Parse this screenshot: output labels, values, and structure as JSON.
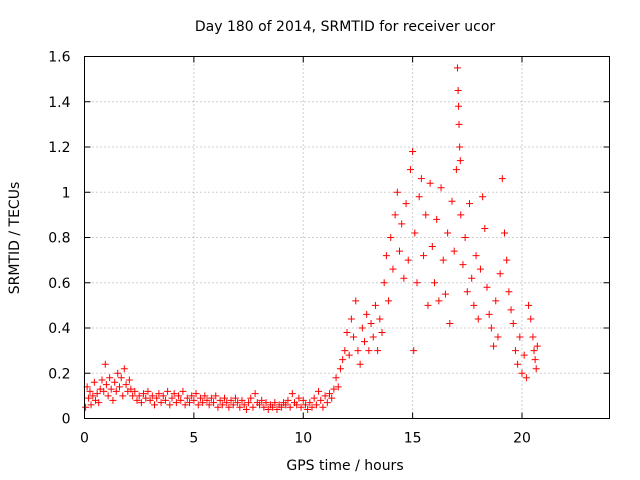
{
  "chart_data": {
    "type": "scatter",
    "title": "Day 180 of 2014, SRMTID for receiver ucor",
    "xlabel": "GPS time / hours",
    "ylabel": "SRMTID / TECUs",
    "xlim": [
      0,
      24
    ],
    "ylim": [
      0,
      1.6
    ],
    "xticks": [
      0,
      5,
      10,
      15,
      20
    ],
    "yticks": [
      0,
      0.2,
      0.4,
      0.6,
      0.8,
      1,
      1.2,
      1.4,
      1.6
    ],
    "xtick_labels": [
      "0",
      "5",
      "10",
      "15",
      "20"
    ],
    "ytick_labels": [
      "0",
      "0.2",
      "0.4",
      "0.6",
      "0.8",
      "1",
      "1.2",
      "1.4",
      "1.6"
    ],
    "grid": true,
    "legend": "none",
    "marker": "plus",
    "color": "#ff0000",
    "series": [
      {
        "name": "SRMTID",
        "points": [
          [
            0.05,
            0.05
          ],
          [
            0.12,
            0.14
          ],
          [
            0.18,
            0.09
          ],
          [
            0.25,
            0.12
          ],
          [
            0.3,
            0.06
          ],
          [
            0.38,
            0.1
          ],
          [
            0.45,
            0.16
          ],
          [
            0.5,
            0.08
          ],
          [
            0.58,
            0.11
          ],
          [
            0.65,
            0.07
          ],
          [
            0.72,
            0.13
          ],
          [
            0.8,
            0.17
          ],
          [
            0.88,
            0.12
          ],
          [
            0.95,
            0.24
          ],
          [
            1.0,
            0.15
          ],
          [
            1.08,
            0.1
          ],
          [
            1.15,
            0.18
          ],
          [
            1.22,
            0.13
          ],
          [
            1.3,
            0.08
          ],
          [
            1.38,
            0.16
          ],
          [
            1.45,
            0.12
          ],
          [
            1.52,
            0.2
          ],
          [
            1.6,
            0.14
          ],
          [
            1.68,
            0.18
          ],
          [
            1.75,
            0.1
          ],
          [
            1.82,
            0.22
          ],
          [
            1.9,
            0.15
          ],
          [
            1.98,
            0.12
          ],
          [
            2.05,
            0.17
          ],
          [
            2.12,
            0.13
          ],
          [
            2.2,
            0.1
          ],
          [
            2.3,
            0.12
          ],
          [
            2.4,
            0.08
          ],
          [
            2.5,
            0.1
          ],
          [
            2.6,
            0.07
          ],
          [
            2.7,
            0.11
          ],
          [
            2.8,
            0.09
          ],
          [
            2.9,
            0.12
          ],
          [
            3.0,
            0.08
          ],
          [
            3.1,
            0.1
          ],
          [
            3.2,
            0.06
          ],
          [
            3.3,
            0.09
          ],
          [
            3.4,
            0.11
          ],
          [
            3.5,
            0.07
          ],
          [
            3.6,
            0.1
          ],
          [
            3.7,
            0.08
          ],
          [
            3.8,
            0.12
          ],
          [
            3.9,
            0.06
          ],
          [
            4.0,
            0.09
          ],
          [
            4.1,
            0.11
          ],
          [
            4.2,
            0.07
          ],
          [
            4.3,
            0.1
          ],
          [
            4.4,
            0.08
          ],
          [
            4.5,
            0.12
          ],
          [
            4.6,
            0.06
          ],
          [
            4.7,
            0.09
          ],
          [
            4.8,
            0.07
          ],
          [
            4.9,
            0.1
          ],
          [
            5.0,
            0.08
          ],
          [
            5.1,
            0.11
          ],
          [
            5.2,
            0.06
          ],
          [
            5.3,
            0.09
          ],
          [
            5.4,
            0.07
          ],
          [
            5.5,
            0.1
          ],
          [
            5.6,
            0.08
          ],
          [
            5.7,
            0.06
          ],
          [
            5.8,
            0.09
          ],
          [
            5.9,
            0.07
          ],
          [
            6.0,
            0.1
          ],
          [
            6.1,
            0.05
          ],
          [
            6.2,
            0.08
          ],
          [
            6.3,
            0.06
          ],
          [
            6.4,
            0.09
          ],
          [
            6.5,
            0.07
          ],
          [
            6.6,
            0.05
          ],
          [
            6.7,
            0.08
          ],
          [
            6.8,
            0.06
          ],
          [
            6.9,
            0.09
          ],
          [
            7.0,
            0.07
          ],
          [
            7.1,
            0.05
          ],
          [
            7.2,
            0.08
          ],
          [
            7.3,
            0.06
          ],
          [
            7.4,
            0.04
          ],
          [
            7.5,
            0.07
          ],
          [
            7.6,
            0.09
          ],
          [
            7.7,
            0.05
          ],
          [
            7.8,
            0.11
          ],
          [
            7.9,
            0.07
          ],
          [
            8.0,
            0.06
          ],
          [
            8.1,
            0.08
          ],
          [
            8.2,
            0.05
          ],
          [
            8.3,
            0.07
          ],
          [
            8.4,
            0.04
          ],
          [
            8.5,
            0.06
          ],
          [
            8.6,
            0.05
          ],
          [
            8.7,
            0.07
          ],
          [
            8.8,
            0.04
          ],
          [
            8.9,
            0.06
          ],
          [
            9.0,
            0.05
          ],
          [
            9.1,
            0.07
          ],
          [
            9.2,
            0.06
          ],
          [
            9.3,
            0.08
          ],
          [
            9.4,
            0.05
          ],
          [
            9.5,
            0.11
          ],
          [
            9.6,
            0.07
          ],
          [
            9.7,
            0.06
          ],
          [
            9.8,
            0.09
          ],
          [
            9.9,
            0.05
          ],
          [
            10.0,
            0.08
          ],
          [
            10.1,
            0.06
          ],
          [
            10.2,
            0.04
          ],
          [
            10.3,
            0.07
          ],
          [
            10.4,
            0.05
          ],
          [
            10.5,
            0.09
          ],
          [
            10.6,
            0.06
          ],
          [
            10.7,
            0.12
          ],
          [
            10.8,
            0.08
          ],
          [
            10.9,
            0.05
          ],
          [
            11.0,
            0.1
          ],
          [
            11.1,
            0.07
          ],
          [
            11.2,
            0.11
          ],
          [
            11.3,
            0.09
          ],
          [
            11.4,
            0.13
          ],
          [
            11.5,
            0.18
          ],
          [
            11.6,
            0.14
          ],
          [
            11.7,
            0.22
          ],
          [
            11.8,
            0.26
          ],
          [
            11.9,
            0.3
          ],
          [
            12.0,
            0.38
          ],
          [
            12.1,
            0.28
          ],
          [
            12.2,
            0.44
          ],
          [
            12.3,
            0.36
          ],
          [
            12.4,
            0.52
          ],
          [
            12.5,
            0.3
          ],
          [
            12.6,
            0.24
          ],
          [
            12.7,
            0.4
          ],
          [
            12.8,
            0.34
          ],
          [
            12.9,
            0.46
          ],
          [
            13.0,
            0.3
          ],
          [
            13.1,
            0.42
          ],
          [
            13.2,
            0.36
          ],
          [
            13.3,
            0.5
          ],
          [
            13.4,
            0.3
          ],
          [
            13.5,
            0.44
          ],
          [
            13.6,
            0.38
          ],
          [
            13.7,
            0.6
          ],
          [
            13.8,
            0.72
          ],
          [
            13.9,
            0.52
          ],
          [
            14.0,
            0.8
          ],
          [
            14.1,
            0.66
          ],
          [
            14.2,
            0.9
          ],
          [
            14.3,
            1.0
          ],
          [
            14.4,
            0.74
          ],
          [
            14.5,
            0.86
          ],
          [
            14.6,
            0.62
          ],
          [
            14.7,
            0.95
          ],
          [
            14.8,
            0.7
          ],
          [
            14.9,
            1.1
          ],
          [
            15.0,
            1.18
          ],
          [
            15.05,
            0.3
          ],
          [
            15.1,
            0.82
          ],
          [
            15.2,
            0.6
          ],
          [
            15.3,
            0.98
          ],
          [
            15.4,
            1.06
          ],
          [
            15.5,
            0.72
          ],
          [
            15.6,
            0.9
          ],
          [
            15.7,
            0.5
          ],
          [
            15.8,
            1.04
          ],
          [
            15.9,
            0.76
          ],
          [
            16.0,
            0.6
          ],
          [
            16.1,
            0.88
          ],
          [
            16.2,
            0.52
          ],
          [
            16.3,
            1.02
          ],
          [
            16.4,
            0.7
          ],
          [
            16.5,
            0.55
          ],
          [
            16.6,
            0.82
          ],
          [
            16.7,
            0.42
          ],
          [
            16.8,
            0.96
          ],
          [
            16.9,
            0.74
          ],
          [
            17.0,
            1.1
          ],
          [
            17.05,
            1.55
          ],
          [
            17.08,
            1.45
          ],
          [
            17.1,
            1.38
          ],
          [
            17.12,
            1.3
          ],
          [
            17.15,
            1.2
          ],
          [
            17.18,
            1.14
          ],
          [
            17.2,
            0.9
          ],
          [
            17.3,
            0.68
          ],
          [
            17.4,
            0.8
          ],
          [
            17.5,
            0.56
          ],
          [
            17.6,
            0.95
          ],
          [
            17.7,
            0.62
          ],
          [
            17.8,
            0.5
          ],
          [
            17.9,
            0.72
          ],
          [
            18.0,
            0.44
          ],
          [
            18.1,
            0.66
          ],
          [
            18.2,
            0.98
          ],
          [
            18.3,
            0.84
          ],
          [
            18.4,
            0.58
          ],
          [
            18.5,
            0.46
          ],
          [
            18.6,
            0.4
          ],
          [
            18.7,
            0.32
          ],
          [
            18.8,
            0.52
          ],
          [
            18.9,
            0.36
          ],
          [
            19.0,
            0.64
          ],
          [
            19.1,
            1.06
          ],
          [
            19.2,
            0.82
          ],
          [
            19.3,
            0.7
          ],
          [
            19.4,
            0.56
          ],
          [
            19.5,
            0.48
          ],
          [
            19.6,
            0.42
          ],
          [
            19.7,
            0.3
          ],
          [
            19.8,
            0.24
          ],
          [
            19.9,
            0.36
          ],
          [
            20.0,
            0.2
          ],
          [
            20.1,
            0.28
          ],
          [
            20.2,
            0.18
          ],
          [
            20.3,
            0.5
          ],
          [
            20.4,
            0.44
          ],
          [
            20.5,
            0.36
          ],
          [
            20.55,
            0.3
          ],
          [
            20.6,
            0.26
          ],
          [
            20.65,
            0.22
          ],
          [
            20.7,
            0.32
          ]
        ]
      }
    ]
  }
}
